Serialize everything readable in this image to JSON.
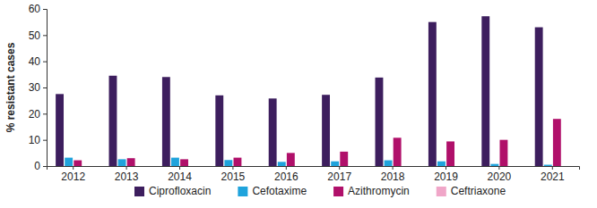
{
  "chart_data": {
    "type": "bar",
    "y_label": "% resistant cases",
    "categories": [
      "2012",
      "2013",
      "2014",
      "2015",
      "2016",
      "2017",
      "2018",
      "2019",
      "2020",
      "2021"
    ],
    "series": [
      {
        "name": "Ciprofloxacin",
        "color": "#3d1e5e",
        "values": [
          27.5,
          34.5,
          34,
          27,
          25.8,
          27.2,
          33.8,
          55,
          57.2,
          53
        ]
      },
      {
        "name": "Cefotaxime",
        "color": "#1fa3dc",
        "values": [
          3.2,
          2.6,
          3.2,
          2.3,
          1.6,
          1.8,
          2.2,
          1.8,
          0.8,
          0.5
        ]
      },
      {
        "name": "Azithromycin",
        "color": "#b0106a",
        "values": [
          2.2,
          3.0,
          2.6,
          3.2,
          5.0,
          5.5,
          10.8,
          9.4,
          10.0,
          18.0
        ]
      },
      {
        "name": "Ceftriaxone",
        "color": "#f0a6c8",
        "values": [
          0,
          0,
          0,
          0,
          0,
          0,
          0,
          0,
          0,
          0
        ]
      }
    ],
    "ylim": [
      0,
      60
    ],
    "yticks": [
      0,
      10,
      20,
      30,
      40,
      50,
      60
    ],
    "grid": false,
    "legend": "bottom"
  }
}
